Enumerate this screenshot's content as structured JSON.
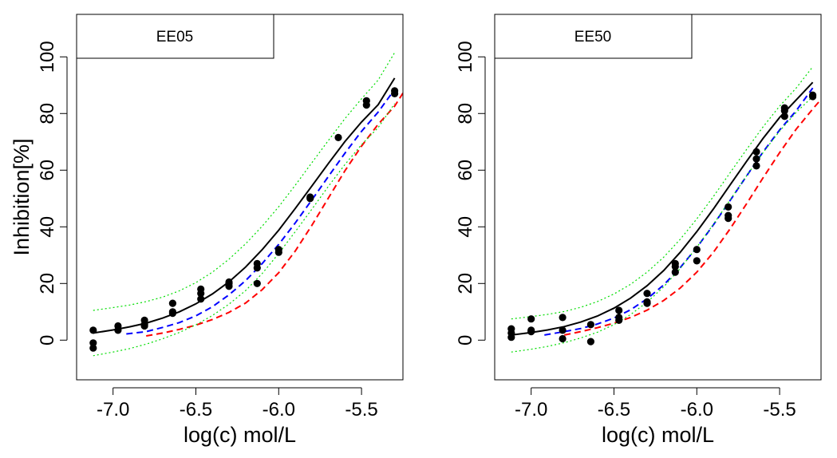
{
  "colors": {
    "data_points": "#000000",
    "fit_curve": "#000000",
    "blue_curve": "#0000ff",
    "red_curve": "#ff0000",
    "ci_band": "#00dd00",
    "frame": "#000000"
  },
  "chart_data": [
    {
      "type": "scatter",
      "panel_label": "EE05",
      "xlabel": "log(c) mol/L",
      "ylabel": "Inhibition[%]",
      "xlim": [
        -7.22,
        -5.25
      ],
      "ylim": [
        -14,
        115
      ],
      "xticks": [
        -7.0,
        -6.5,
        -6.0,
        -5.5
      ],
      "xtick_labels": [
        "-7.0",
        "-6.5",
        "-6.0",
        "-5.5"
      ],
      "yticks": [
        0,
        20,
        40,
        60,
        80,
        100
      ],
      "ytick_labels": [
        "0",
        "20",
        "40",
        "60",
        "80",
        "100"
      ],
      "legend_box": "top-left",
      "grid": false,
      "points": [
        [
          -7.12,
          3.5
        ],
        [
          -7.12,
          -1.0
        ],
        [
          -7.12,
          -2.8
        ],
        [
          -6.97,
          3.5
        ],
        [
          -6.97,
          5.0
        ],
        [
          -6.81,
          5.0
        ],
        [
          -6.81,
          7.0
        ],
        [
          -6.81,
          5.5
        ],
        [
          -6.64,
          10.0
        ],
        [
          -6.64,
          13.0
        ],
        [
          -6.64,
          9.5
        ],
        [
          -6.47,
          14.5
        ],
        [
          -6.47,
          16.5
        ],
        [
          -6.47,
          18.0
        ],
        [
          -6.3,
          19.0
        ],
        [
          -6.3,
          20.0
        ],
        [
          -6.3,
          20.5
        ],
        [
          -6.13,
          20.0
        ],
        [
          -6.13,
          25.5
        ],
        [
          -6.13,
          27.0
        ],
        [
          -6.0,
          31.0
        ],
        [
          -6.0,
          32.0
        ],
        [
          -5.81,
          50.0
        ],
        [
          -5.81,
          50.5
        ],
        [
          -5.64,
          71.5
        ],
        [
          -5.47,
          83.0
        ],
        [
          -5.47,
          84.5
        ],
        [
          -5.3,
          87.0
        ],
        [
          -5.3,
          88.0
        ]
      ],
      "curves": [
        {
          "role": "fit",
          "style": "solid",
          "x": [
            -7.12,
            -7.0,
            -6.9,
            -6.8,
            -6.7,
            -6.6,
            -6.5,
            -6.4,
            -6.3,
            -6.2,
            -6.1,
            -6.0,
            -5.9,
            -5.8,
            -5.7,
            -5.6,
            -5.5,
            -5.4,
            -5.3
          ],
          "y": [
            2.5,
            3.6,
            4.7,
            6.0,
            7.8,
            10.0,
            12.8,
            16.3,
            20.6,
            25.8,
            31.9,
            38.8,
            46.5,
            54.4,
            62.4,
            70.1,
            77.0,
            83.1,
            92.5
          ]
        },
        {
          "role": "blue",
          "style": "dashed",
          "x": [
            -6.92,
            -6.8,
            -6.7,
            -6.6,
            -6.5,
            -6.4,
            -6.3,
            -6.2,
            -6.1,
            -6.0,
            -5.9,
            -5.8,
            -5.7,
            -5.6,
            -5.5,
            -5.4,
            -5.3
          ],
          "y": [
            2.2,
            3.0,
            4.5,
            6.2,
            8.6,
            11.8,
            16.0,
            21.0,
            27.0,
            33.8,
            41.4,
            49.5,
            57.8,
            66.0,
            73.7,
            80.5,
            88.5
          ]
        },
        {
          "role": "red",
          "style": "dashed",
          "x": [
            -6.8,
            -6.7,
            -6.6,
            -6.5,
            -6.4,
            -6.3,
            -6.2,
            -6.1,
            -6.0,
            -5.9,
            -5.8,
            -5.7,
            -5.6,
            -5.5,
            -5.4,
            -5.3,
            -5.25
          ],
          "y": [
            1.5,
            2.5,
            3.8,
            5.3,
            7.3,
            9.8,
            13.1,
            17.8,
            23.8,
            31.5,
            40.5,
            50.2,
            59.8,
            68.5,
            76.2,
            82.6,
            87.2
          ]
        },
        {
          "role": "ci_upper",
          "style": "dotted",
          "x": [
            -7.12,
            -7.0,
            -6.9,
            -6.8,
            -6.7,
            -6.6,
            -6.5,
            -6.4,
            -6.3,
            -6.2,
            -6.1,
            -6.0,
            -5.9,
            -5.8,
            -5.7,
            -5.6,
            -5.5,
            -5.4,
            -5.3
          ],
          "y": [
            10.5,
            11.5,
            12.4,
            13.6,
            15.2,
            17.4,
            20.3,
            24.0,
            28.6,
            34.0,
            40.2,
            47.1,
            54.7,
            62.6,
            70.5,
            78.2,
            85.2,
            91.8,
            101.5
          ]
        },
        {
          "role": "ci_lower",
          "style": "dotted",
          "x": [
            -7.12,
            -7.0,
            -6.9,
            -6.8,
            -6.7,
            -6.6,
            -6.5,
            -6.4,
            -6.3,
            -6.2,
            -6.1,
            -6.0,
            -5.9,
            -5.8,
            -5.7,
            -5.6,
            -5.5,
            -5.4,
            -5.3
          ],
          "y": [
            -5.5,
            -4.2,
            -3.0,
            -1.4,
            0.5,
            2.7,
            5.4,
            8.7,
            12.7,
            17.5,
            23.5,
            30.6,
            38.3,
            46.2,
            54.3,
            62.0,
            69.0,
            75.0,
            83.5
          ]
        }
      ]
    },
    {
      "type": "scatter",
      "panel_label": "EE50",
      "xlabel": "log(c) mol/L",
      "ylabel": "",
      "xlim": [
        -7.22,
        -5.25
      ],
      "ylim": [
        -14,
        115
      ],
      "xticks": [
        -7.0,
        -6.5,
        -6.0,
        -5.5
      ],
      "xtick_labels": [
        "-7.0",
        "-6.5",
        "-6.0",
        "-5.5"
      ],
      "yticks": [
        0,
        20,
        40,
        60,
        80,
        100
      ],
      "ytick_labels": [
        "0",
        "20",
        "40",
        "60",
        "80",
        "100"
      ],
      "legend_box": "top-left",
      "grid": false,
      "points": [
        [
          -7.12,
          1.0
        ],
        [
          -7.12,
          2.5
        ],
        [
          -7.12,
          4.0
        ],
        [
          -7.0,
          3.0
        ],
        [
          -7.0,
          7.5
        ],
        [
          -7.0,
          3.5
        ],
        [
          -6.81,
          0.5
        ],
        [
          -6.81,
          3.5
        ],
        [
          -6.81,
          8.0
        ],
        [
          -6.64,
          -0.5
        ],
        [
          -6.64,
          5.5
        ],
        [
          -6.47,
          7.0
        ],
        [
          -6.47,
          8.0
        ],
        [
          -6.47,
          10.5
        ],
        [
          -6.3,
          13.0
        ],
        [
          -6.3,
          16.5
        ],
        [
          -6.3,
          13.5
        ],
        [
          -6.13,
          24.0
        ],
        [
          -6.13,
          26.0
        ],
        [
          -6.13,
          27.0
        ],
        [
          -6.0,
          28.0
        ],
        [
          -6.0,
          32.0
        ],
        [
          -5.81,
          43.0
        ],
        [
          -5.81,
          44.0
        ],
        [
          -5.81,
          47.0
        ],
        [
          -5.64,
          61.5
        ],
        [
          -5.64,
          64.0
        ],
        [
          -5.64,
          66.5
        ],
        [
          -5.47,
          79.0
        ],
        [
          -5.47,
          81.0
        ],
        [
          -5.47,
          82.0
        ],
        [
          -5.3,
          86.0
        ],
        [
          -5.3,
          86.5
        ]
      ],
      "curves": [
        {
          "role": "fit",
          "style": "solid",
          "x": [
            -7.12,
            -7.0,
            -6.9,
            -6.8,
            -6.7,
            -6.6,
            -6.5,
            -6.4,
            -6.3,
            -6.2,
            -6.1,
            -6.0,
            -5.9,
            -5.8,
            -5.7,
            -5.6,
            -5.5,
            -5.4,
            -5.3
          ],
          "y": [
            1.8,
            2.7,
            3.6,
            4.8,
            6.4,
            8.5,
            11.3,
            14.8,
            19.2,
            24.6,
            31.0,
            38.3,
            46.3,
            54.7,
            63.1,
            71.2,
            78.6,
            84.8,
            91.0
          ]
        },
        {
          "role": "blue",
          "style": "dashed",
          "x": [
            -6.92,
            -6.8,
            -6.7,
            -6.6,
            -6.5,
            -6.4,
            -6.3,
            -6.2,
            -6.1,
            -6.0,
            -5.9,
            -5.8,
            -5.7,
            -5.6,
            -5.5,
            -5.4,
            -5.3
          ],
          "y": [
            1.8,
            3.0,
            4.1,
            5.7,
            7.8,
            10.7,
            14.6,
            19.5,
            25.6,
            32.7,
            40.7,
            49.2,
            57.9,
            66.4,
            74.2,
            81.0,
            89.0
          ]
        },
        {
          "role": "red",
          "style": "dashed",
          "x": [
            -6.8,
            -6.7,
            -6.6,
            -6.5,
            -6.4,
            -6.3,
            -6.2,
            -6.1,
            -6.0,
            -5.9,
            -5.8,
            -5.7,
            -5.6,
            -5.5,
            -5.4,
            -5.3,
            -5.25
          ],
          "y": [
            1.8,
            3.0,
            4.4,
            6.0,
            8.0,
            10.6,
            14.0,
            18.4,
            24.0,
            31.0,
            39.2,
            48.1,
            57.3,
            66.2,
            74.5,
            81.6,
            85.0
          ]
        },
        {
          "role": "ci_upper",
          "style": "dotted",
          "x": [
            -7.12,
            -7.0,
            -6.9,
            -6.8,
            -6.7,
            -6.6,
            -6.5,
            -6.4,
            -6.3,
            -6.2,
            -6.1,
            -6.0,
            -5.9,
            -5.8,
            -5.7,
            -5.6,
            -5.5,
            -5.4,
            -5.3
          ],
          "y": [
            7.5,
            8.3,
            9.1,
            10.1,
            11.6,
            13.6,
            16.3,
            19.7,
            24.0,
            29.3,
            35.6,
            42.8,
            50.7,
            59.0,
            67.3,
            75.3,
            82.6,
            89.0,
            96.5
          ]
        },
        {
          "role": "ci_lower",
          "style": "dotted",
          "x": [
            -7.12,
            -7.0,
            -6.9,
            -6.8,
            -6.7,
            -6.6,
            -6.5,
            -6.4,
            -6.3,
            -6.2,
            -6.1,
            -6.0,
            -5.9,
            -5.8,
            -5.7,
            -5.6,
            -5.5,
            -5.4,
            -5.3
          ],
          "y": [
            -4.2,
            -3.2,
            -2.2,
            -0.9,
            0.8,
            2.8,
            5.5,
            9.0,
            13.4,
            18.8,
            25.3,
            32.8,
            40.9,
            49.4,
            58.0,
            66.2,
            73.8,
            80.4,
            86.0
          ]
        }
      ]
    }
  ]
}
